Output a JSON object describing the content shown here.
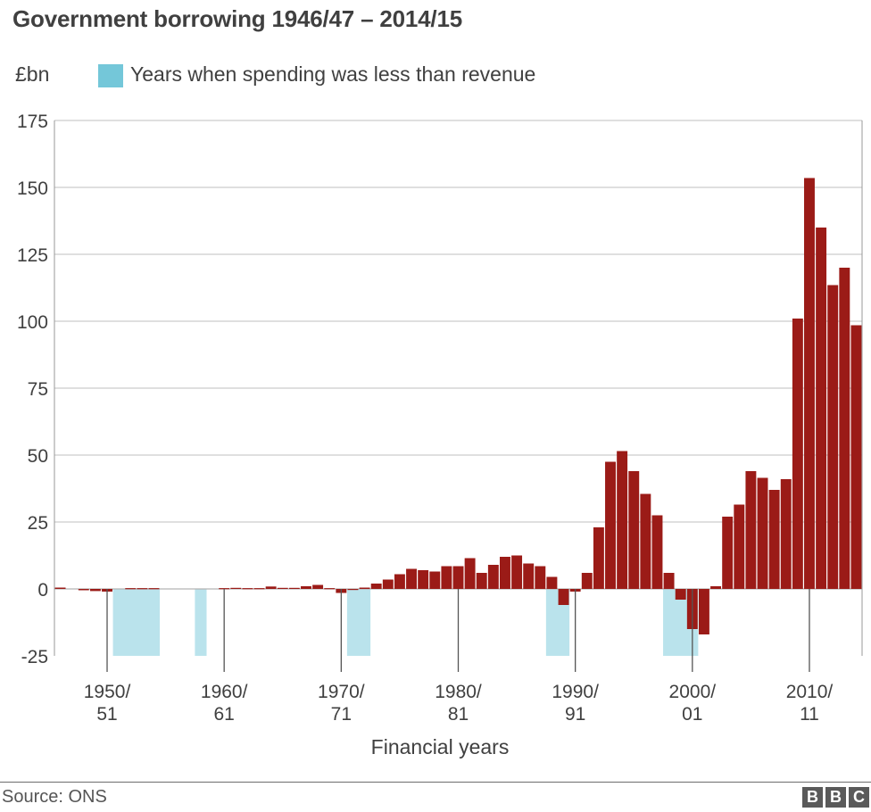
{
  "chart_data": {
    "type": "bar",
    "title": "Government borrowing 1946/47 – 2014/15",
    "ylabel": "£bn",
    "xlabel": "Financial years",
    "ylim": [
      -25,
      175
    ],
    "yticks": [
      -25,
      0,
      25,
      50,
      75,
      100,
      125,
      150,
      175
    ],
    "grid": true,
    "legend": {
      "label": "Years when spending was less than revenue",
      "placement": "top-left"
    },
    "x_start": 1946,
    "x_end": 2014,
    "series": [
      {
        "values": [
          0.5,
          0,
          -0.5,
          -0.8,
          -1,
          0,
          0.3,
          0.3,
          0.3,
          0,
          0,
          0,
          0,
          0,
          0.3,
          0.4,
          0.3,
          0.3,
          0.9,
          0.4,
          0.4,
          1,
          1.5,
          0.3,
          -1.5,
          -0.2,
          0.5,
          2,
          3.5,
          5.5,
          7.5,
          7,
          6.5,
          8.5,
          8.5,
          11.5,
          6,
          9,
          12,
          12.5,
          9.5,
          8.5,
          4.5,
          -6,
          -1,
          6,
          23,
          47.5,
          51.5,
          44,
          35.5,
          27.5,
          6,
          -4,
          -15,
          -17,
          1,
          27,
          31.5,
          44,
          41.5,
          37,
          41,
          101,
          153.5,
          135,
          113.5,
          120,
          98.5
        ]
      }
    ],
    "highlight_periods": [
      {
        "from": 1951,
        "to": 1954
      },
      {
        "from": 1958,
        "to": 1958
      },
      {
        "from": 1971,
        "to": 1972
      },
      {
        "from": 1988,
        "to": 1989
      },
      {
        "from": 1998,
        "to": 2000
      }
    ],
    "x_ticks": [
      {
        "year": 1950,
        "line1": "1950/",
        "line2": "51"
      },
      {
        "year": 1960,
        "line1": "1960/",
        "line2": "61"
      },
      {
        "year": 1970,
        "line1": "1970/",
        "line2": "71"
      },
      {
        "year": 1980,
        "line1": "1980/",
        "line2": "81"
      },
      {
        "year": 1990,
        "line1": "1990/",
        "line2": "91"
      },
      {
        "year": 2000,
        "line1": "2000/",
        "line2": "01"
      },
      {
        "year": 2010,
        "line1": "2010/",
        "line2": "11"
      }
    ]
  },
  "colors": {
    "bar": "#9b1b17",
    "highlight": "#bae3ec",
    "legend_swatch": "#74c7d9",
    "grid": "#cccccc",
    "axis": "#999999",
    "tick_line": "#555555",
    "text": "#404040"
  },
  "footer": {
    "source": "Source: ONS"
  },
  "logo": {
    "letters": [
      "B",
      "B",
      "C"
    ]
  }
}
